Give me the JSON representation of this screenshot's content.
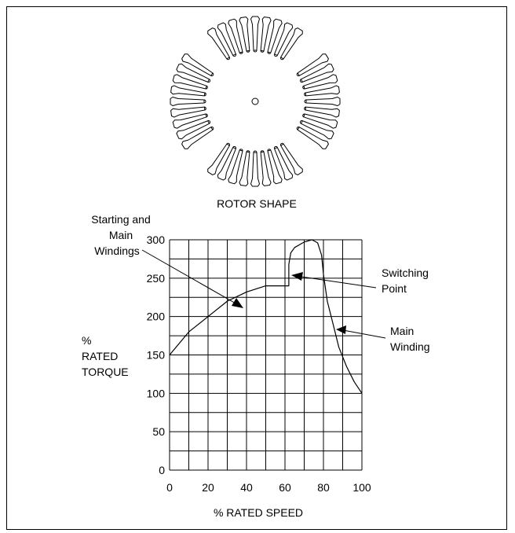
{
  "figure": {
    "rotor_caption": "ROTOR SHAPE",
    "annotations": {
      "starting_main": [
        "Starting and",
        "Main",
        "Windings"
      ],
      "switching": [
        "Switching",
        "Point"
      ],
      "main_winding": [
        "Main",
        "Winding"
      ]
    }
  },
  "chart_data": {
    "type": "line",
    "xlabel": "% RATED SPEED",
    "ylabel": [
      "%",
      "RATED",
      "TORQUE"
    ],
    "xlim": [
      0,
      100
    ],
    "ylim": [
      0,
      300
    ],
    "x_ticks": [
      "0",
      "20",
      "40",
      "60",
      "80",
      "100"
    ],
    "y_ticks": [
      "0",
      "50",
      "100",
      "150",
      "200",
      "250",
      "300"
    ],
    "grid": true,
    "series": [
      {
        "values": [
          [
            0,
            150
          ],
          [
            10,
            180
          ],
          [
            20,
            200
          ],
          [
            30,
            220
          ],
          [
            40,
            232
          ],
          [
            50,
            240
          ],
          [
            55,
            240
          ],
          [
            60,
            240
          ],
          [
            62,
            240
          ],
          [
            62,
            268
          ],
          [
            63,
            283
          ],
          [
            65,
            290
          ],
          [
            70,
            297
          ],
          [
            74,
            300
          ],
          [
            77,
            296
          ],
          [
            79,
            280
          ],
          [
            80,
            255
          ],
          [
            82,
            220
          ],
          [
            85,
            190
          ],
          [
            88,
            160
          ],
          [
            92,
            135
          ],
          [
            96,
            115
          ],
          [
            100,
            100
          ]
        ]
      }
    ]
  }
}
